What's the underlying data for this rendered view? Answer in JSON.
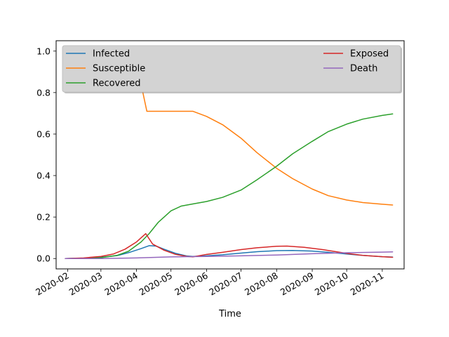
{
  "chart_data": {
    "type": "line",
    "title": "",
    "xlabel": "Time",
    "ylabel": "",
    "xlim": [
      "2020-01-22",
      "2020-11-20"
    ],
    "ylim": [
      -0.05,
      1.05
    ],
    "x_ticks": [
      "2020-02",
      "2020-03",
      "2020-04",
      "2020-05",
      "2020-06",
      "2020-07",
      "2020-08",
      "2020-09",
      "2020-10",
      "2020-11"
    ],
    "x_tick_dates": [
      "2020-02-01",
      "2020-03-01",
      "2020-04-01",
      "2020-05-01",
      "2020-06-01",
      "2020-07-01",
      "2020-08-01",
      "2020-09-01",
      "2020-10-01",
      "2020-11-01"
    ],
    "y_ticks": [
      "0.0",
      "0.2",
      "0.4",
      "0.6",
      "0.8",
      "1.0"
    ],
    "y_tick_values": [
      0.0,
      0.2,
      0.4,
      0.6,
      0.8,
      1.0
    ],
    "grid": false,
    "legend": {
      "placement": "top",
      "columns": 2,
      "background": "#d3d3d3"
    },
    "series": [
      {
        "name": "Infected",
        "color": "#1f77b4",
        "points": [
          [
            "2020-01-30",
            0.0
          ],
          [
            "2020-02-15",
            0.002
          ],
          [
            "2020-03-01",
            0.006
          ],
          [
            "2020-03-15",
            0.014
          ],
          [
            "2020-03-25",
            0.028
          ],
          [
            "2020-04-05",
            0.048
          ],
          [
            "2020-04-12",
            0.062
          ],
          [
            "2020-04-18",
            0.06
          ],
          [
            "2020-04-25",
            0.045
          ],
          [
            "2020-05-05",
            0.025
          ],
          [
            "2020-05-15",
            0.012
          ],
          [
            "2020-05-20",
            0.01
          ],
          [
            "2020-06-01",
            0.013
          ],
          [
            "2020-06-15",
            0.018
          ],
          [
            "2020-07-01",
            0.026
          ],
          [
            "2020-07-15",
            0.033
          ],
          [
            "2020-08-01",
            0.038
          ],
          [
            "2020-08-15",
            0.039
          ],
          [
            "2020-09-01",
            0.036
          ],
          [
            "2020-09-15",
            0.03
          ],
          [
            "2020-10-01",
            0.022
          ],
          [
            "2020-10-15",
            0.015
          ],
          [
            "2020-11-01",
            0.009
          ],
          [
            "2020-11-10",
            0.007
          ]
        ]
      },
      {
        "name": "Susceptible",
        "color": "#ff7f0e",
        "points": [
          [
            "2020-01-30",
            1.0
          ],
          [
            "2020-02-15",
            0.998
          ],
          [
            "2020-03-01",
            0.992
          ],
          [
            "2020-03-10",
            0.978
          ],
          [
            "2020-03-20",
            0.95
          ],
          [
            "2020-03-28",
            0.91
          ],
          [
            "2020-04-05",
            0.84
          ],
          [
            "2020-04-10",
            0.71
          ],
          [
            "2020-05-20",
            0.71
          ],
          [
            "2020-06-01",
            0.685
          ],
          [
            "2020-06-15",
            0.645
          ],
          [
            "2020-07-01",
            0.58
          ],
          [
            "2020-07-15",
            0.51
          ],
          [
            "2020-08-01",
            0.435
          ],
          [
            "2020-08-15",
            0.385
          ],
          [
            "2020-09-01",
            0.335
          ],
          [
            "2020-09-15",
            0.303
          ],
          [
            "2020-10-01",
            0.282
          ],
          [
            "2020-10-15",
            0.27
          ],
          [
            "2020-11-01",
            0.262
          ],
          [
            "2020-11-10",
            0.258
          ]
        ]
      },
      {
        "name": "Recovered",
        "color": "#2ca02c",
        "points": [
          [
            "2020-01-30",
            0.0
          ],
          [
            "2020-02-15",
            0.001
          ],
          [
            "2020-03-01",
            0.004
          ],
          [
            "2020-03-15",
            0.015
          ],
          [
            "2020-03-25",
            0.035
          ],
          [
            "2020-04-05",
            0.08
          ],
          [
            "2020-04-12",
            0.12
          ],
          [
            "2020-04-20",
            0.175
          ],
          [
            "2020-05-01",
            0.23
          ],
          [
            "2020-05-10",
            0.253
          ],
          [
            "2020-05-20",
            0.263
          ],
          [
            "2020-06-01",
            0.275
          ],
          [
            "2020-06-15",
            0.295
          ],
          [
            "2020-07-01",
            0.33
          ],
          [
            "2020-07-15",
            0.38
          ],
          [
            "2020-08-01",
            0.445
          ],
          [
            "2020-08-15",
            0.505
          ],
          [
            "2020-09-01",
            0.565
          ],
          [
            "2020-09-15",
            0.612
          ],
          [
            "2020-10-01",
            0.648
          ],
          [
            "2020-10-15",
            0.672
          ],
          [
            "2020-11-01",
            0.69
          ],
          [
            "2020-11-10",
            0.697
          ]
        ]
      },
      {
        "name": "Exposed",
        "color": "#d62728",
        "points": [
          [
            "2020-01-30",
            0.0
          ],
          [
            "2020-02-15",
            0.003
          ],
          [
            "2020-03-01",
            0.01
          ],
          [
            "2020-03-12",
            0.022
          ],
          [
            "2020-03-22",
            0.045
          ],
          [
            "2020-04-01",
            0.08
          ],
          [
            "2020-04-09",
            0.12
          ],
          [
            "2020-04-15",
            0.07
          ],
          [
            "2020-04-25",
            0.04
          ],
          [
            "2020-05-05",
            0.02
          ],
          [
            "2020-05-15",
            0.01
          ],
          [
            "2020-05-20",
            0.008
          ],
          [
            "2020-06-01",
            0.02
          ],
          [
            "2020-06-15",
            0.03
          ],
          [
            "2020-07-01",
            0.043
          ],
          [
            "2020-07-15",
            0.052
          ],
          [
            "2020-08-01",
            0.059
          ],
          [
            "2020-08-10",
            0.06
          ],
          [
            "2020-08-25",
            0.054
          ],
          [
            "2020-09-10",
            0.043
          ],
          [
            "2020-10-01",
            0.025
          ],
          [
            "2020-10-15",
            0.015
          ],
          [
            "2020-11-01",
            0.009
          ],
          [
            "2020-11-10",
            0.006
          ]
        ]
      },
      {
        "name": "Death",
        "color": "#9467bd",
        "points": [
          [
            "2020-01-30",
            0.0
          ],
          [
            "2020-03-01",
            0.0
          ],
          [
            "2020-04-01",
            0.003
          ],
          [
            "2020-05-01",
            0.008
          ],
          [
            "2020-06-01",
            0.01
          ],
          [
            "2020-07-01",
            0.013
          ],
          [
            "2020-08-01",
            0.017
          ],
          [
            "2020-09-01",
            0.023
          ],
          [
            "2020-10-01",
            0.028
          ],
          [
            "2020-11-01",
            0.031
          ],
          [
            "2020-11-10",
            0.032
          ]
        ]
      }
    ]
  }
}
